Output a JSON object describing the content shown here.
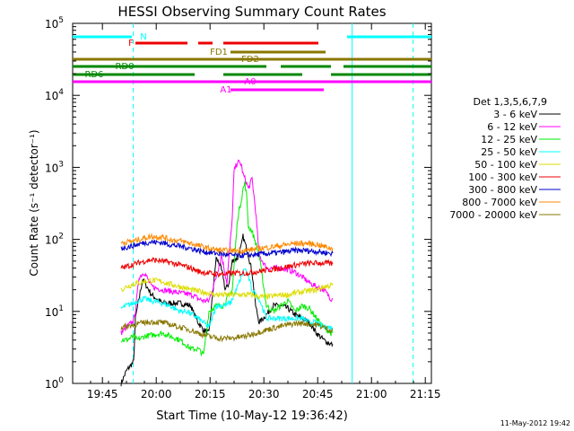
{
  "chart_data": {
    "type": "line",
    "title": "HESSI Observing Summary Count Rates",
    "xlabel": "Start Time (10-May-12 19:36:42)",
    "ylabel": "Count Rate (s⁻¹ detector⁻¹)",
    "ylog": true,
    "x_units": "minutes after 19:36:42 UT",
    "xlim": [
      0,
      100
    ],
    "ylim": [
      1,
      100000
    ],
    "x_ticks": [
      {
        "x": 8.3,
        "label": "19:45"
      },
      {
        "x": 23.3,
        "label": "20:00"
      },
      {
        "x": 38.3,
        "label": "20:15"
      },
      {
        "x": 53.3,
        "label": "20:30"
      },
      {
        "x": 68.3,
        "label": "20:45"
      },
      {
        "x": 83.3,
        "label": "21:00"
      },
      {
        "x": 98.3,
        "label": "21:15"
      }
    ],
    "y_ticks": [
      {
        "y": 1,
        "mant": "10",
        "exp": "0"
      },
      {
        "y": 10,
        "mant": "10",
        "exp": "1"
      },
      {
        "y": 100,
        "mant": "10",
        "exp": "2"
      },
      {
        "y": 1000,
        "mant": "10",
        "exp": "3"
      },
      {
        "y": 10000,
        "mant": "10",
        "exp": "4"
      },
      {
        "y": 100000,
        "mant": "10",
        "exp": "5"
      }
    ],
    "legend_title": "Det 1,3,5,6,7,9",
    "legend_position": "right",
    "series": [
      {
        "name": "3 - 6 keV",
        "color": "#000000",
        "x": [
          13.5,
          15,
          17,
          17.5,
          18.5,
          19.5,
          22,
          25,
          30,
          33,
          33.5,
          35,
          36.5,
          38,
          40,
          41,
          42,
          42.5,
          43.5,
          44.5,
          46,
          47,
          47.5,
          48,
          49,
          50,
          51,
          52,
          54,
          56,
          58,
          60,
          62,
          64,
          66,
          68,
          70,
          72,
          72.5
        ],
        "y": [
          1,
          1.5,
          2,
          8,
          15,
          28,
          17,
          13,
          13,
          12,
          10,
          7,
          5.5,
          5,
          55,
          45,
          30,
          20,
          24,
          50,
          55,
          80,
          110,
          90,
          60,
          35,
          12,
          7,
          9,
          12,
          12,
          11,
          9,
          8,
          7,
          5,
          4,
          3.5,
          3.5
        ]
      },
      {
        "name": "6 - 12 keV",
        "color": "#ff00ff",
        "x": [
          13.5,
          15,
          17,
          17.5,
          18.5,
          20,
          22,
          25,
          30,
          33,
          33.5,
          35,
          36.5,
          38,
          40,
          41.5,
          43,
          44.5,
          45,
          46,
          47,
          47.5,
          48,
          48.5,
          49,
          50,
          51,
          52,
          54,
          56,
          58,
          60,
          62,
          64,
          66,
          68,
          70,
          72,
          72.5
        ],
        "y": [
          5,
          6,
          7.5,
          10,
          30,
          35,
          22,
          20,
          18,
          17,
          17,
          15,
          14,
          14,
          30,
          60,
          25,
          200,
          900,
          1200,
          1100,
          800,
          700,
          600,
          500,
          700,
          250,
          60,
          40,
          40,
          40,
          38,
          35,
          30,
          25,
          22,
          20,
          15,
          15
        ]
      },
      {
        "name": "12 - 25 keV",
        "color": "#00ee00",
        "x": [
          13.5,
          15,
          17,
          18,
          20,
          25,
          30,
          33,
          33.5,
          35,
          36.5,
          38,
          40,
          42,
          44.5,
          46,
          47,
          47.5,
          48,
          48.5,
          49,
          50,
          51,
          52,
          54,
          56,
          58,
          60,
          62,
          64,
          66,
          68,
          70,
          72,
          72.5
        ],
        "y": [
          4,
          4,
          4.5,
          4,
          4.5,
          5,
          4,
          3,
          3,
          3,
          2.5,
          10,
          12,
          12,
          20,
          200,
          350,
          500,
          600,
          400,
          150,
          130,
          90,
          60,
          12,
          10,
          12,
          14,
          10,
          12,
          11,
          8,
          6,
          5,
          5
        ]
      },
      {
        "name": "25 - 50 keV",
        "color": "#00ffff",
        "x": [
          13.5,
          15,
          17,
          18,
          20,
          22,
          25,
          27,
          30,
          32,
          33,
          33.5,
          35,
          36.5,
          38,
          40,
          42,
          44,
          46,
          47,
          48,
          49,
          50,
          52,
          54,
          56,
          58,
          60,
          62,
          64,
          66,
          68,
          70,
          72,
          72.5
        ],
        "y": [
          11,
          12,
          13,
          14,
          15,
          14,
          13,
          12,
          10,
          10,
          9,
          9,
          8,
          7,
          6,
          12,
          12,
          13,
          22,
          30,
          40,
          30,
          20,
          15,
          8,
          8,
          8,
          8,
          8,
          8,
          7,
          7,
          6,
          6,
          6
        ]
      },
      {
        "name": "50 - 100 keV",
        "color": "#dddd00",
        "x": [
          13.5,
          15,
          17,
          20,
          22,
          25,
          27,
          30,
          33,
          35,
          38,
          40,
          42,
          45,
          48,
          50,
          52,
          55,
          58,
          60,
          62,
          65,
          68,
          70,
          72,
          72.5
        ],
        "y": [
          20,
          22,
          24,
          26,
          27,
          26,
          24,
          22,
          20,
          19,
          18,
          17,
          17,
          17,
          17,
          17,
          16,
          16,
          17,
          17,
          18,
          19,
          20,
          22,
          23,
          23
        ]
      },
      {
        "name": "100 - 300 keV",
        "color": "#ee0000",
        "x": [
          13.5,
          15,
          17,
          20,
          22,
          25,
          27,
          30,
          33,
          35,
          38,
          40,
          42,
          45,
          48,
          50,
          52,
          55,
          58,
          60,
          62,
          65,
          68,
          70,
          72,
          72.5
        ],
        "y": [
          40,
          42,
          45,
          50,
          52,
          50,
          48,
          44,
          40,
          36,
          34,
          33,
          33,
          34,
          34,
          35,
          36,
          38,
          40,
          42,
          44,
          46,
          47,
          47,
          46,
          46
        ]
      },
      {
        "name": "300 - 800 keV",
        "color": "#0000cc",
        "x": [
          13.5,
          15,
          17,
          20,
          22,
          25,
          27,
          30,
          33,
          35,
          38,
          40,
          42,
          45,
          48,
          50,
          52,
          55,
          58,
          60,
          62,
          65,
          68,
          70,
          72,
          72.5
        ],
        "y": [
          75,
          78,
          82,
          90,
          92,
          90,
          85,
          80,
          75,
          70,
          66,
          64,
          62,
          60,
          60,
          61,
          62,
          64,
          66,
          68,
          70,
          70,
          68,
          66,
          64,
          64
        ]
      },
      {
        "name": "800 - 7000 keV",
        "color": "#ff8800",
        "x": [
          13.5,
          15,
          17,
          20,
          22,
          25,
          27,
          30,
          33,
          35,
          38,
          40,
          42,
          45,
          48,
          50,
          52,
          55,
          58,
          60,
          62,
          65,
          68,
          70,
          72,
          72.5
        ],
        "y": [
          90,
          92,
          95,
          105,
          110,
          108,
          100,
          95,
          88,
          82,
          75,
          72,
          70,
          70,
          70,
          72,
          75,
          78,
          82,
          85,
          88,
          88,
          85,
          80,
          75,
          75
        ]
      },
      {
        "name": "7000 - 20000 keV",
        "color": "#887700",
        "x": [
          13.5,
          15,
          17,
          20,
          22,
          25,
          27,
          30,
          33,
          35,
          38,
          40,
          42,
          45,
          48,
          50,
          52,
          55,
          58,
          60,
          62,
          65,
          68,
          70,
          72,
          72.5
        ],
        "y": [
          6,
          6.2,
          6.5,
          7,
          7.2,
          7,
          6.6,
          6,
          5.5,
          5,
          4.5,
          4.3,
          4.2,
          4.3,
          4.5,
          4.8,
          5.2,
          5.7,
          6.2,
          6.5,
          6.8,
          6.8,
          6.5,
          6,
          5.5,
          5.5
        ]
      }
    ],
    "flag_bars": [
      {
        "label": "N",
        "color": "#00ffff",
        "show_label": true,
        "segments": [
          [
            0,
            16.5
          ],
          [
            76.5,
            100
          ]
        ]
      },
      {
        "label": "F",
        "color": "#ee0000",
        "show_label": true,
        "segments": [
          [
            17.5,
            32
          ],
          [
            35,
            39
          ],
          [
            42,
            68.5
          ]
        ]
      },
      {
        "label": "FD1",
        "color": "#887700",
        "show_label": true,
        "segments": [
          [
            44,
            70.5
          ]
        ]
      },
      {
        "label": "FD2",
        "color": "#887700",
        "show_label": true,
        "segments": [
          [
            0,
            100
          ]
        ]
      },
      {
        "label": "RD0",
        "color": "#008800",
        "show_label": true,
        "segments": [
          [
            0,
            54
          ],
          [
            58,
            72
          ],
          [
            75.5,
            100
          ]
        ]
      },
      {
        "label": "RD6",
        "color": "#008800",
        "show_label": true,
        "segments": [
          [
            0,
            34
          ],
          [
            42,
            64
          ],
          [
            72,
            100
          ]
        ]
      },
      {
        "label": "A0",
        "color": "#ff00ff",
        "show_label": true,
        "segments": [
          [
            0,
            100
          ]
        ]
      },
      {
        "label": "A1",
        "color": "#ff00ff",
        "show_label": true,
        "segments": [
          [
            44,
            70
          ]
        ]
      }
    ],
    "vertical_markers": [
      {
        "x": 16.9,
        "color": "#00ffff",
        "style": "dashed"
      },
      {
        "x": 77.9,
        "color": "#00ffff",
        "style": "solid"
      },
      {
        "x": 94.9,
        "color": "#00ffff",
        "style": "dashed"
      }
    ],
    "footer_date": "11-May-2012 19:42"
  }
}
